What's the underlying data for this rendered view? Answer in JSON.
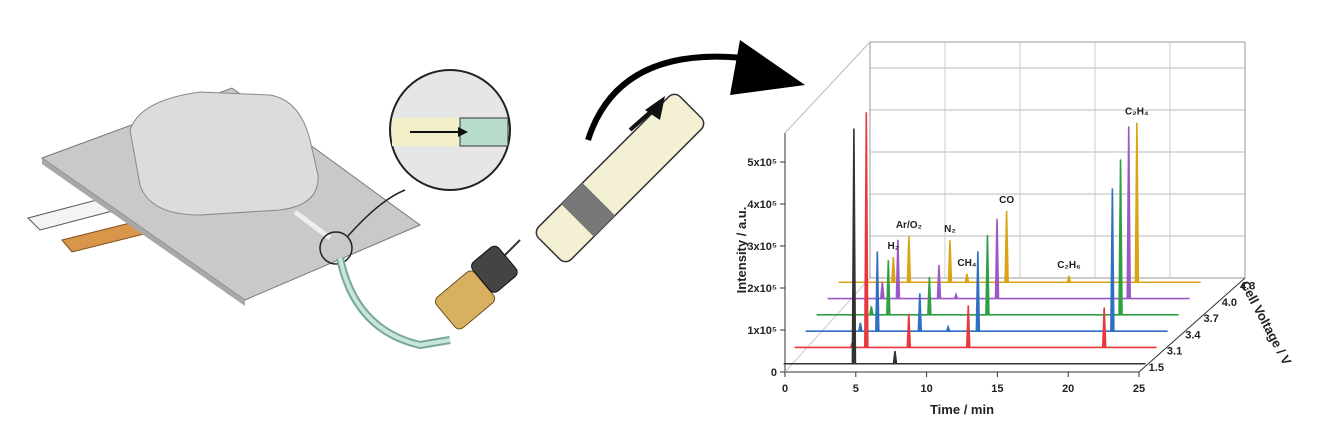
{
  "chart_data": {
    "type": "line",
    "subtype": "3d-waterfall",
    "xlabel": "Time / min",
    "ylabel": "Intensity / a.u.",
    "zlabel": "Cell Voltage / V",
    "xlim": [
      0,
      25
    ],
    "ylim": [
      0,
      550000
    ],
    "x_ticks": [
      0,
      5,
      10,
      15,
      20,
      25
    ],
    "y_ticks": [
      {
        "value": 0,
        "label": "0"
      },
      {
        "value": 100000,
        "label": "1x10⁵"
      },
      {
        "value": 200000,
        "label": "2x10⁵"
      },
      {
        "value": 300000,
        "label": "3x10⁵"
      },
      {
        "value": 400000,
        "label": "4x10⁵"
      },
      {
        "value": 500000,
        "label": "5x10⁵"
      }
    ],
    "grid": true,
    "series": [
      {
        "name": "1.5",
        "color": "#333333",
        "peaks": [
          [
            4.4,
            560000
          ],
          [
            7.3,
            30000
          ]
        ]
      },
      {
        "name": "3.1",
        "color": "#e8383d",
        "peaks": [
          [
            3.5,
            10000
          ],
          [
            4.5,
            560000
          ],
          [
            7.5,
            80000
          ],
          [
            11.7,
            100000
          ],
          [
            21.3,
            95000
          ]
        ]
      },
      {
        "name": "3.4",
        "color": "#2f6fc4",
        "peaks": [
          [
            3.3,
            20000
          ],
          [
            4.5,
            190000
          ],
          [
            7.5,
            90000
          ],
          [
            9.5,
            10000
          ],
          [
            11.6,
            190000
          ],
          [
            21.1,
            340000
          ]
        ]
      },
      {
        "name": "3.7",
        "color": "#2ea043",
        "peaks": [
          [
            3.3,
            20000
          ],
          [
            4.5,
            130000
          ],
          [
            7.4,
            90000
          ],
          [
            11.5,
            190000
          ],
          [
            20.9,
            370000
          ]
        ]
      },
      {
        "name": "4.0",
        "color": "#9b59c6",
        "peaks": [
          [
            3.3,
            40000
          ],
          [
            4.4,
            140000
          ],
          [
            7.3,
            80000
          ],
          [
            8.5,
            10000
          ],
          [
            11.4,
            190000
          ],
          [
            20.7,
            410000
          ]
        ]
      },
      {
        "name": "4.3",
        "color": "#d9a514",
        "peaks": [
          [
            3.3,
            60000
          ],
          [
            4.4,
            110000
          ],
          [
            7.3,
            100000
          ],
          [
            8.5,
            20000
          ],
          [
            11.3,
            170000
          ],
          [
            15.7,
            15000
          ],
          [
            20.5,
            380000
          ]
        ]
      }
    ],
    "annotations": [
      {
        "text": "H₂",
        "x": 3.3
      },
      {
        "text": "Ar/O₂",
        "x": 4.4
      },
      {
        "text": "N₂",
        "x": 7.3
      },
      {
        "text": "CH₄",
        "x": 8.5
      },
      {
        "text": "CO",
        "x": 11.3
      },
      {
        "text": "C₂H₆",
        "x": 15.7
      },
      {
        "text": "C₂H₄",
        "x": 20.5
      }
    ]
  }
}
